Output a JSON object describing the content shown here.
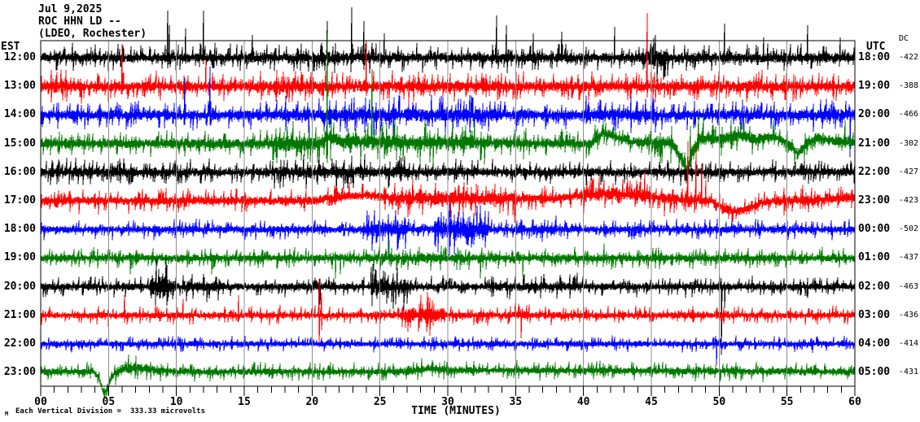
{
  "header": {
    "date": "Jul 9,2025",
    "station": "ROC HHN LD --",
    "location": "(LDEO, Rochester)"
  },
  "axes": {
    "left_zone_label": "EST",
    "right_zone_label": "UTC",
    "dc_column_label": "DC",
    "x_axis_title": "TIME (MINUTES)",
    "x_tick_labels": [
      "00",
      "05",
      "10",
      "15",
      "20",
      "25",
      "30",
      "35",
      "40",
      "45",
      "50",
      "55",
      "60"
    ],
    "footer_note": "Each Vertical Division =  333.33 microvolts",
    "corner_mark": "M"
  },
  "colors": {
    "background": "#ffffff",
    "frame": "#000000",
    "gridline": "#8c8c8c",
    "trace_cycle": [
      "#000000",
      "#ff0000",
      "#0000ff",
      "#007800"
    ]
  },
  "chart_data": {
    "type": "line",
    "kind": "helicorder seismogram, 12 hourly traces of 60 minutes each",
    "title": "ROC HHN LD -- (LDEO, Rochester) Jul 9,2025",
    "xlabel": "TIME (MINUTES)",
    "x_range": [
      0,
      60
    ],
    "x_major_step": 5,
    "x_minor_step": 1,
    "grid": "vertical gray lines every 5 minutes",
    "legend_position": "none",
    "vertical_division_microvolts": 333.33,
    "rows": [
      {
        "est": "12:00",
        "utc": "18:00",
        "dc": "-422",
        "color": "#000000",
        "amp": 6,
        "events": [
          [
            19,
            26,
            1.15
          ],
          [
            44.8,
            46.3,
            1.7
          ]
        ],
        "spikes": [
          [
            9.35,
            58,
            10
          ],
          [
            9.5,
            40,
            8
          ],
          [
            10.7,
            36,
            6
          ],
          [
            12.0,
            58,
            8
          ],
          [
            15.6,
            28,
            6
          ],
          [
            21.1,
            45,
            8
          ],
          [
            22.9,
            62,
            8
          ],
          [
            23.8,
            45,
            6
          ],
          [
            25.3,
            30,
            8
          ],
          [
            33.6,
            52,
            8
          ],
          [
            34.3,
            40,
            6
          ],
          [
            36.3,
            30,
            6
          ],
          [
            38.4,
            32,
            6
          ],
          [
            42.3,
            38,
            6
          ],
          [
            45.3,
            28,
            10
          ],
          [
            50.4,
            42,
            8
          ],
          [
            53.3,
            25,
            5
          ],
          [
            56.5,
            40,
            8
          ],
          [
            58.9,
            25,
            5
          ]
        ]
      },
      {
        "est": "13:00",
        "utc": "19:00",
        "dc": "-388",
        "color": "#ff0000",
        "amp": 6.5,
        "events": [
          [
            0,
            3,
            1.2
          ],
          [
            16,
            21,
            1.2
          ],
          [
            27,
            31,
            1.15
          ]
        ],
        "spikes": [
          [
            0.8,
            20,
            10
          ],
          [
            6.0,
            52,
            10
          ],
          [
            12.2,
            32,
            8
          ],
          [
            17.4,
            20,
            14
          ],
          [
            21.5,
            18,
            12
          ],
          [
            24.0,
            56,
            12
          ],
          [
            30.2,
            16,
            10
          ],
          [
            44.7,
            90,
            14
          ],
          [
            45.0,
            25,
            10
          ],
          [
            53.5,
            12,
            8
          ]
        ]
      },
      {
        "est": "14:00",
        "utc": "20:00",
        "dc": "-466",
        "color": "#0000ff",
        "amp": 6.5,
        "events": [
          [
            18,
            34,
            1.25
          ],
          [
            40,
            46,
            1.2
          ],
          [
            56,
            60,
            1.15
          ]
        ],
        "spikes": [
          [
            3.5,
            14,
            10
          ],
          [
            10.6,
            46,
            12
          ],
          [
            12.5,
            60,
            12
          ],
          [
            21.3,
            18,
            16
          ],
          [
            26.0,
            14,
            30
          ],
          [
            44.6,
            20,
            12
          ],
          [
            49.5,
            14,
            10
          ],
          [
            59.65,
            10,
            52
          ]
        ]
      },
      {
        "est": "15:00",
        "utc": "21:00",
        "dc": "-302",
        "color": "#007800",
        "amp": 6,
        "events": [
          [
            17,
            33,
            1.5
          ],
          [
            44.5,
            49,
            1.5
          ],
          [
            49,
            58,
            1.15
          ]
        ],
        "drift": [
          [
            0,
            0
          ],
          [
            20.5,
            0
          ],
          [
            21.3,
            8
          ],
          [
            22.5,
            2
          ],
          [
            40.6,
            0
          ],
          [
            41.4,
            13
          ],
          [
            42.3,
            9
          ],
          [
            43.6,
            2
          ],
          [
            46.6,
            0
          ],
          [
            47.2,
            -18
          ],
          [
            47.6,
            -32
          ],
          [
            48.1,
            -8
          ],
          [
            48.7,
            7
          ],
          [
            50,
            5
          ],
          [
            51.5,
            11
          ],
          [
            52.7,
            5
          ],
          [
            54,
            9
          ],
          [
            55.2,
            -1
          ],
          [
            55.8,
            -13
          ],
          [
            56.4,
            -1
          ],
          [
            57.2,
            7
          ],
          [
            58.5,
            3
          ],
          [
            60,
            2
          ]
        ],
        "spikes": [
          [
            21.1,
            130,
            30
          ],
          [
            24.4,
            90,
            10
          ],
          [
            26.1,
            28,
            10
          ],
          [
            28.9,
            8,
            26
          ],
          [
            32.4,
            6,
            22
          ],
          [
            35.6,
            5,
            20
          ],
          [
            47.5,
            12,
            16
          ],
          [
            47.9,
            40,
            10
          ],
          [
            48.5,
            34,
            10
          ],
          [
            59.3,
            26,
            8
          ]
        ]
      },
      {
        "est": "16:00",
        "utc": "22:00",
        "dc": "-427",
        "color": "#000000",
        "amp": 5.5,
        "events": [
          [
            0,
            10,
            1.1
          ],
          [
            17,
            27,
            1.35
          ]
        ],
        "spikes": [
          [
            9.0,
            12,
            8
          ],
          [
            21.8,
            15,
            26
          ],
          [
            22.3,
            12,
            20
          ],
          [
            26.6,
            18,
            10
          ],
          [
            38.5,
            10,
            8
          ],
          [
            49.0,
            10,
            8
          ],
          [
            58.0,
            10,
            8
          ]
        ]
      },
      {
        "est": "17:00",
        "utc": "23:00",
        "dc": "-423",
        "color": "#ff0000",
        "amp": 5.5,
        "events": [
          [
            26,
            35,
            1.5
          ],
          [
            40,
            47,
            1.35
          ],
          [
            54,
            60,
            1.15
          ]
        ],
        "drift": [
          [
            0,
            0
          ],
          [
            20,
            0
          ],
          [
            22,
            5
          ],
          [
            24,
            7
          ],
          [
            26,
            3
          ],
          [
            38,
            3
          ],
          [
            40,
            7
          ],
          [
            42,
            9
          ],
          [
            44,
            7
          ],
          [
            46,
            3
          ],
          [
            49.4,
            0
          ],
          [
            50.2,
            -8
          ],
          [
            51,
            -13
          ],
          [
            52,
            -11
          ],
          [
            53,
            -3
          ],
          [
            54,
            0
          ],
          [
            57,
            1
          ],
          [
            60,
            5
          ]
        ],
        "spikes": [
          [
            4.8,
            10,
            12
          ],
          [
            13.5,
            12,
            8
          ],
          [
            27.2,
            12,
            20
          ],
          [
            34.9,
            10,
            30
          ],
          [
            44.5,
            30,
            8
          ],
          [
            47.7,
            72,
            10
          ],
          [
            48.3,
            64,
            12
          ],
          [
            48.7,
            45,
            10
          ],
          [
            49.0,
            25,
            8
          ]
        ]
      },
      {
        "est": "18:00",
        "utc": "00:00",
        "dc": "-502",
        "color": "#0000ff",
        "amp": 4.5,
        "events": [
          [
            23.8,
            27,
            2.1
          ],
          [
            29,
            33,
            2.5
          ],
          [
            35,
            38,
            1.3
          ]
        ],
        "spikes": [
          [
            6.5,
            10,
            8
          ],
          [
            25.6,
            16,
            36
          ],
          [
            26.3,
            12,
            26
          ],
          [
            30.5,
            18,
            30
          ],
          [
            31.5,
            14,
            20
          ],
          [
            49.3,
            12,
            10
          ],
          [
            55.0,
            10,
            8
          ]
        ]
      },
      {
        "est": "19:00",
        "utc": "01:00",
        "dc": "-437",
        "color": "#007800",
        "amp": 4.5,
        "events": [
          [
            24,
            34,
            1.25
          ]
        ],
        "spikes": [
          [
            6.6,
            6,
            20
          ],
          [
            12.6,
            5,
            20
          ],
          [
            21.7,
            8,
            25
          ],
          [
            22.1,
            6,
            20
          ],
          [
            25.7,
            22,
            8
          ],
          [
            32.4,
            6,
            25
          ],
          [
            35.5,
            5,
            22
          ],
          [
            41.5,
            18,
            6
          ],
          [
            49.0,
            8,
            6
          ]
        ]
      },
      {
        "est": "20:00",
        "utc": "02:00",
        "dc": "-463",
        "color": "#000000",
        "amp": 4.5,
        "events": [
          [
            8.0,
            9.8,
            2.8
          ],
          [
            10.5,
            13.5,
            1.5
          ],
          [
            24.3,
            27,
            2.3
          ],
          [
            33,
            40,
            1.25
          ]
        ],
        "spikes": [
          [
            9.0,
            16,
            14
          ],
          [
            20.6,
            10,
            22
          ],
          [
            26.0,
            16,
            12
          ],
          [
            36.5,
            12,
            8
          ],
          [
            50.15,
            10,
            84
          ],
          [
            50.4,
            6,
            26
          ],
          [
            55.5,
            10,
            6
          ]
        ]
      },
      {
        "est": "21:00",
        "utc": "03:00",
        "dc": "-436",
        "color": "#ff0000",
        "amp": 4,
        "events": [
          [
            26.5,
            29.8,
            2.4
          ],
          [
            34,
            36,
            1.3
          ]
        ],
        "spikes": [
          [
            5.0,
            8,
            14
          ],
          [
            6.2,
            25,
            6
          ],
          [
            10.5,
            20,
            6
          ],
          [
            14.6,
            25,
            8
          ],
          [
            20.5,
            45,
            34
          ],
          [
            20.7,
            28,
            18
          ],
          [
            27.9,
            14,
            10
          ],
          [
            35.4,
            8,
            28
          ],
          [
            44.0,
            6,
            6
          ],
          [
            57.5,
            6,
            6
          ]
        ]
      },
      {
        "est": "22:00",
        "utc": "04:00",
        "dc": "-414",
        "color": "#0000ff",
        "amp": 3.5,
        "events": [],
        "spikes": [
          [
            3.0,
            5,
            5
          ],
          [
            14.5,
            6,
            5
          ],
          [
            26.5,
            8,
            6
          ],
          [
            49.8,
            6,
            26
          ],
          [
            55.0,
            5,
            4
          ]
        ]
      },
      {
        "est": "23:00",
        "utc": "05:00",
        "dc": "-431",
        "color": "#007800",
        "amp": 4,
        "events": [
          [
            5.4,
            9,
            1.5
          ],
          [
            26,
            32,
            1.2
          ],
          [
            40,
            60,
            1.1
          ]
        ],
        "drift": [
          [
            0,
            1
          ],
          [
            3.9,
            1
          ],
          [
            4.3,
            -6
          ],
          [
            4.65,
            -26
          ],
          [
            5.0,
            -16
          ],
          [
            5.35,
            -2
          ],
          [
            6,
            4
          ],
          [
            7.2,
            6
          ],
          [
            8.5,
            3
          ],
          [
            10,
            1
          ],
          [
            27,
            1
          ],
          [
            28.5,
            5
          ],
          [
            30,
            3
          ],
          [
            60,
            1
          ]
        ],
        "spikes": [
          [
            35.2,
            6,
            10
          ],
          [
            41.0,
            12,
            6
          ],
          [
            48.5,
            6,
            8
          ]
        ]
      }
    ]
  }
}
